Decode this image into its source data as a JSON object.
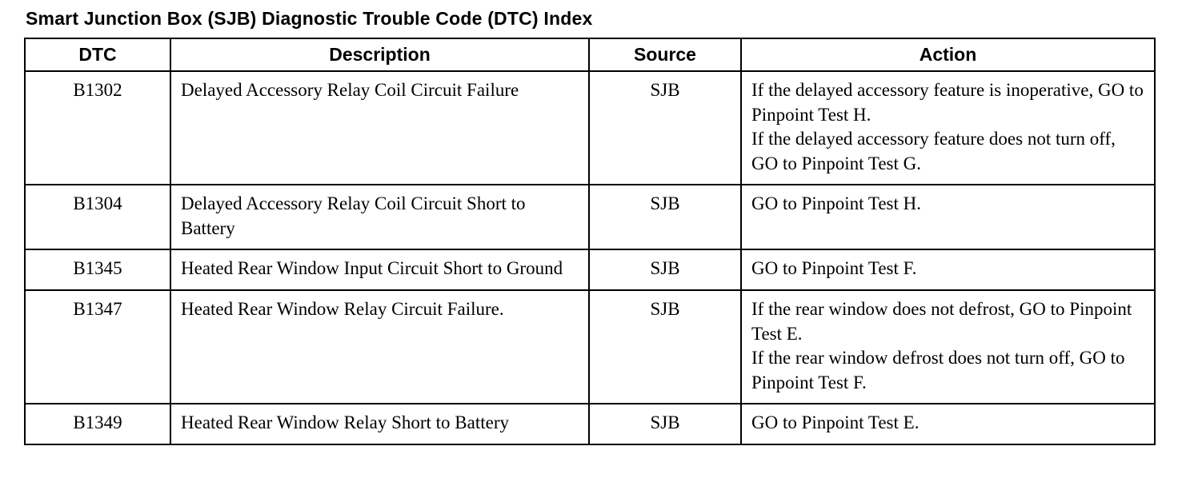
{
  "page": {
    "title": "Smart Junction Box (SJB) Diagnostic Trouble Code (DTC) Index"
  },
  "table": {
    "headers": [
      "DTC",
      "Description",
      "Source",
      "Action"
    ],
    "rows": [
      {
        "dtc": "B1302",
        "description": "Delayed Accessory Relay Coil Circuit Failure",
        "source": "SJB",
        "action": "If the delayed accessory feature is inoperative, GO to Pinpoint Test H.\nIf the delayed accessory feature does not turn off, GO to Pinpoint Test G."
      },
      {
        "dtc": "B1304",
        "description": "Delayed Accessory Relay Coil Circuit Short to Battery",
        "source": "SJB",
        "action": "GO to Pinpoint Test H."
      },
      {
        "dtc": "B1345",
        "description": "Heated Rear Window Input Circuit Short to Ground",
        "source": "SJB",
        "action": "GO to Pinpoint Test F."
      },
      {
        "dtc": "B1347",
        "description": "Heated Rear Window Relay Circuit Failure.",
        "source": "SJB",
        "action": "If the rear window does not defrost, GO to Pinpoint Test E.\nIf the rear window defrost does not turn off, GO to Pinpoint Test F."
      },
      {
        "dtc": "B1349",
        "description": "Heated Rear Window Relay Short to Battery",
        "source": "SJB",
        "action": "GO to Pinpoint Test E."
      }
    ]
  }
}
